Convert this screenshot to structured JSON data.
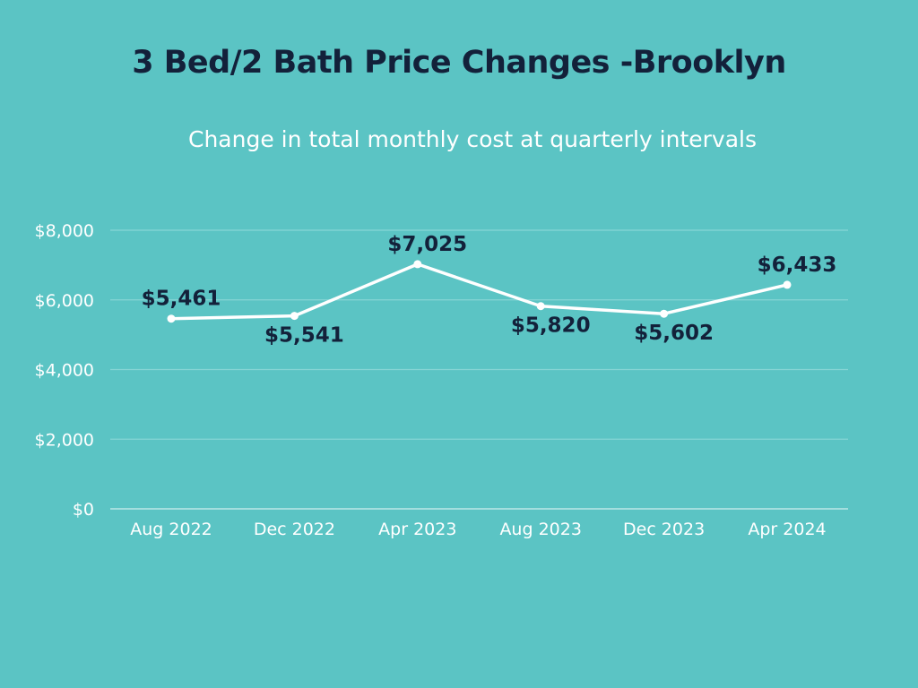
{
  "chart_data": {
    "type": "line",
    "title": "3 Bed/2 Bath Price Changes -Brooklyn",
    "subtitle": "Change in total monthly cost at quarterly intervals",
    "xlabel": "",
    "ylabel": "",
    "categories": [
      "Aug 2022",
      "Dec 2022",
      "Apr 2023",
      "Aug 2023",
      "Dec 2023",
      "Apr 2024"
    ],
    "values": [
      5461,
      5541,
      7025,
      5820,
      5602,
      6433
    ],
    "data_labels": [
      "$5,461",
      "$5,541",
      "$7,025",
      "$5,820",
      "$5,602",
      "$6,433"
    ],
    "label_positions": [
      "above",
      "below",
      "above",
      "below",
      "below",
      "above"
    ],
    "ylim": [
      0,
      8000
    ],
    "yticks": [
      0,
      2000,
      4000,
      6000,
      8000
    ],
    "ytick_labels": [
      "$0",
      "$2,000",
      "$4,000",
      "$6,000",
      "$8,000"
    ],
    "grid": true,
    "legend": "none",
    "colors": {
      "background": "#5bc4c4",
      "line": "#ffffff",
      "gridline": "#86d5d5",
      "title": "#13213a",
      "data_label": "#13213a",
      "axis_text": "#ffffff"
    }
  }
}
